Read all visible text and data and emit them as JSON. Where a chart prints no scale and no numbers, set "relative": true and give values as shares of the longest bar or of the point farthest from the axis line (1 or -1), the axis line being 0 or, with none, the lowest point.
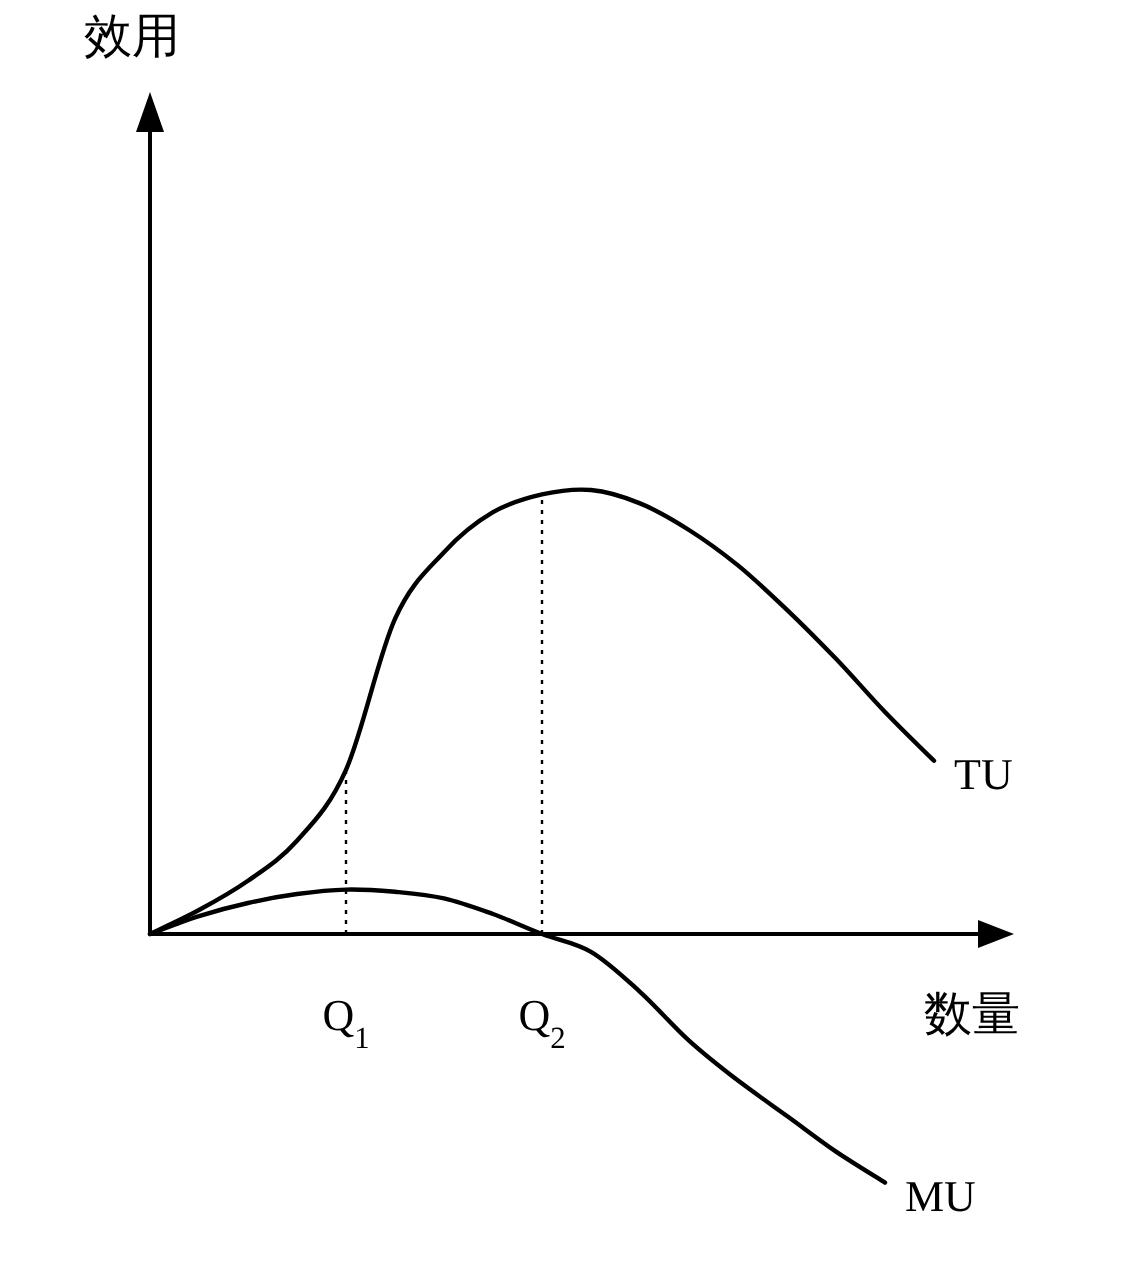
{
  "chart_data": {
    "type": "line",
    "relative": true,
    "annotations": [
      "效用"
    ],
    "xlabel": "数量",
    "categories": [
      null,
      null,
      null,
      null,
      "Q$_{1}$",
      null,
      null,
      null,
      "Q$_{2}$",
      null,
      null,
      null,
      null,
      null,
      null,
      null,
      null
    ],
    "ref_lines": [
      {
        "axis": "x",
        "value": "Q$_{1}$",
        "line_style": "dotted"
      },
      {
        "axis": "x",
        "value": "Q$_{2}$",
        "line_style": "dotted"
      }
    ],
    "series": [
      {
        "name": "TU",
        "color": "#000000",
        "values": [
          0,
          0.054,
          0.12,
          0.21,
          0.37,
          0.71,
          0.86,
          0.95,
          0.99,
          1.0,
          0.97,
          0.91,
          0.83,
          0.73,
          0.62,
          0.5,
          0.39
        ]
      },
      {
        "name": "MU",
        "color": "#000000",
        "values": [
          0,
          0.04,
          0.07,
          0.09,
          0.1,
          0.095,
          0.08,
          0.045,
          0,
          -0.04,
          -0.13,
          -0.24,
          -0.33,
          -0.41,
          -0.49,
          -0.56,
          null
        ]
      }
    ]
  }
}
